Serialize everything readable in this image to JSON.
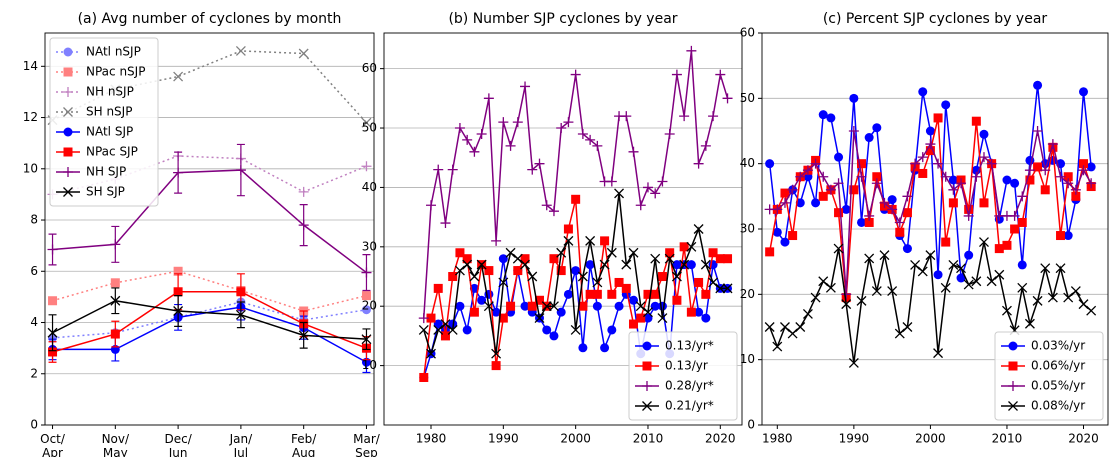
{
  "chart_data": [
    {
      "type": "line",
      "title": "(a) Avg number of cyclones by month",
      "categories": [
        "Oct/\nApr",
        "Nov/\nMay",
        "Dec/\nJun",
        "Jan/\nJul",
        "Feb/\nAug",
        "Mar/\nSep"
      ],
      "ylim": [
        0,
        15.3
      ],
      "yticks": [
        0,
        2,
        4,
        6,
        8,
        10,
        12,
        14
      ],
      "grid": true,
      "legend": "upper left",
      "series": [
        {
          "name": "NAtl nSJP",
          "color": "#8080ff",
          "linestyle": "dotted",
          "marker": "o",
          "values": [
            3.4,
            3.6,
            4.2,
            4.8,
            4.1,
            4.5
          ]
        },
        {
          "name": "NPac nSJP",
          "color": "#ff8080",
          "linestyle": "dotted",
          "marker": "s",
          "values": [
            4.85,
            5.55,
            6.0,
            5.25,
            4.45,
            5.05
          ]
        },
        {
          "name": "NH nSJP",
          "color": "#c080c0",
          "linestyle": "dotted",
          "marker": "+",
          "values": [
            9.0,
            9.6,
            10.5,
            10.4,
            9.1,
            10.1
          ]
        },
        {
          "name": "SH nSJP",
          "color": "#808080",
          "linestyle": "dotted",
          "marker": "x",
          "values": [
            11.9,
            13.1,
            13.6,
            14.6,
            14.5,
            11.8
          ]
        },
        {
          "name": "NAtl SJP",
          "color": "#0000ff",
          "linestyle": "solid",
          "marker": "o",
          "values": [
            2.95,
            2.95,
            4.2,
            4.6,
            3.8,
            2.45
          ],
          "errors": [
            0.4,
            0.45,
            0.5,
            0.5,
            0.45,
            0.4
          ]
        },
        {
          "name": "NPac SJP",
          "color": "#ff0000",
          "linestyle": "solid",
          "marker": "s",
          "values": [
            2.85,
            3.55,
            5.2,
            5.2,
            3.95,
            3.0
          ],
          "errors": [
            0.4,
            0.5,
            0.7,
            0.7,
            0.5,
            0.45
          ]
        },
        {
          "name": "NH SJP",
          "color": "#800080",
          "linestyle": "solid",
          "marker": "+",
          "values": [
            6.85,
            7.05,
            9.85,
            9.95,
            7.8,
            5.95
          ],
          "errors": [
            0.6,
            0.7,
            0.8,
            1.0,
            0.8,
            0.7
          ]
        },
        {
          "name": "SH SJP",
          "color": "#000000",
          "linestyle": "solid",
          "marker": "x",
          "values": [
            3.6,
            4.85,
            4.45,
            4.3,
            3.5,
            3.35
          ],
          "errors": [
            0.7,
            0.5,
            0.6,
            0.5,
            0.5,
            0.4
          ]
        }
      ]
    },
    {
      "type": "line",
      "title": "(b) Number SJP cyclones by year",
      "x": [
        1979,
        1980,
        1981,
        1982,
        1983,
        1984,
        1985,
        1986,
        1987,
        1988,
        1989,
        1990,
        1991,
        1992,
        1993,
        1994,
        1995,
        1996,
        1997,
        1998,
        1999,
        2000,
        2001,
        2002,
        2003,
        2004,
        2005,
        2006,
        2007,
        2008,
        2009,
        2010,
        2011,
        2012,
        2013,
        2014,
        2015,
        2016,
        2017,
        2018,
        2019,
        2020,
        2021
      ],
      "xlim": [
        1973.5,
        2023
      ],
      "xticks": [
        1980,
        1990,
        2000,
        2010,
        2020
      ],
      "ylim": [
        0,
        66
      ],
      "yticks": [
        10,
        20,
        30,
        40,
        50,
        60
      ],
      "grid": true,
      "legend": "lower right",
      "series": [
        {
          "name": "0.13/yr*",
          "color": "#0000ff",
          "linestyle": "solid",
          "marker": "o",
          "values": [
            8,
            12,
            17,
            16,
            17,
            20,
            16,
            23,
            21,
            22,
            19,
            28,
            19,
            26,
            20,
            19,
            18,
            16,
            15,
            19,
            22,
            26,
            13,
            27,
            20,
            13,
            16,
            20,
            22,
            21,
            12,
            18,
            20,
            20,
            12,
            27,
            27,
            27,
            19,
            18,
            27,
            23,
            23
          ]
        },
        {
          "name": "0.13/yr",
          "color": "#ff0000",
          "linestyle": "solid",
          "marker": "s",
          "values": [
            8,
            18,
            23,
            15,
            25,
            29,
            28,
            19,
            27,
            26,
            10,
            18,
            20,
            26,
            28,
            20,
            21,
            20,
            28,
            26,
            33,
            38,
            20,
            22,
            22,
            31,
            22,
            24,
            23,
            17,
            18,
            22,
            22,
            25,
            29,
            21,
            30,
            19,
            24,
            22,
            29,
            28,
            28
          ]
        },
        {
          "name": "0.28/yr*",
          "color": "#800080",
          "linestyle": "solid",
          "marker": "+",
          "values": [
            18,
            37,
            43,
            34,
            43,
            50,
            48,
            46,
            49,
            55,
            31,
            51,
            47,
            51,
            57,
            43,
            44,
            37,
            36,
            50,
            51,
            59,
            49,
            48,
            47,
            41,
            41,
            52,
            52,
            46,
            37,
            40,
            39,
            41,
            49,
            59,
            52,
            63,
            44,
            47,
            52,
            59,
            55
          ]
        },
        {
          "name": "0.21/yr*",
          "color": "#000000",
          "linestyle": "solid",
          "marker": "x",
          "values": [
            16,
            12,
            16,
            17,
            16,
            26,
            27,
            25,
            27,
            20,
            12,
            24,
            29,
            28,
            27,
            25,
            18,
            20,
            20,
            29,
            31,
            16,
            25,
            31,
            24,
            27,
            29,
            39,
            27,
            29,
            20,
            19,
            28,
            18,
            28,
            25,
            27,
            30,
            33,
            27,
            24,
            23,
            23
          ]
        }
      ]
    },
    {
      "type": "line",
      "title": "(c) Percent SJP cyclones by year",
      "x": [
        1979,
        1980,
        1981,
        1982,
        1983,
        1984,
        1985,
        1986,
        1987,
        1988,
        1989,
        1990,
        1991,
        1992,
        1993,
        1994,
        1995,
        1996,
        1997,
        1998,
        1999,
        2000,
        2001,
        2002,
        2003,
        2004,
        2005,
        2006,
        2007,
        2008,
        2009,
        2010,
        2011,
        2012,
        2013,
        2014,
        2015,
        2016,
        2017,
        2018,
        2019,
        2020,
        2021
      ],
      "xlim": [
        1978,
        2023.2
      ],
      "xticks": [
        1980,
        1990,
        2000,
        2010,
        2020
      ],
      "ylim": [
        0,
        60
      ],
      "yticks": [
        0,
        10,
        20,
        30,
        40,
        50,
        60
      ],
      "grid": true,
      "legend": "lower right",
      "series": [
        {
          "name": "0.03%/yr",
          "color": "#0000ff",
          "linestyle": "solid",
          "marker": "o",
          "values": [
            40,
            29.5,
            28,
            36,
            34,
            38,
            34,
            47.5,
            47,
            41,
            33,
            50,
            31,
            44,
            45.5,
            33,
            34.5,
            29,
            27,
            39,
            51,
            45,
            23,
            49,
            37.5,
            22.5,
            26,
            39,
            44.5,
            40,
            31.5,
            37.5,
            37,
            24.5,
            40.5,
            52,
            40,
            40.5,
            40,
            29,
            34.5,
            51,
            39.5
          ]
        },
        {
          "name": "0.06%/yr",
          "color": "#ff0000",
          "linestyle": "solid",
          "marker": "s",
          "values": [
            26.5,
            33,
            35.5,
            29,
            38,
            39,
            40.5,
            35,
            36,
            32.5,
            19.5,
            36,
            40,
            31,
            38,
            33.5,
            33,
            29.5,
            32.5,
            39.5,
            38.5,
            42,
            47,
            28,
            34,
            37.5,
            33,
            46.5,
            34,
            40,
            27,
            27.5,
            30,
            31,
            37.5,
            39.5,
            36,
            42.5,
            29,
            38,
            35,
            40,
            36.5
          ]
        },
        {
          "name": "0.05%/yr",
          "color": "#800080",
          "linestyle": "solid",
          "marker": "+",
          "values": [
            33,
            33,
            34,
            36,
            38,
            39,
            40,
            38,
            36,
            37,
            20,
            45,
            38,
            32,
            37,
            34,
            33,
            31,
            35,
            40,
            41,
            43,
            40,
            38,
            36,
            37,
            32,
            38,
            41,
            40,
            32,
            32,
            32,
            35,
            39,
            45,
            39,
            43,
            38,
            37,
            36,
            39,
            37
          ]
        },
        {
          "name": "0.08%/yr",
          "color": "#000000",
          "linestyle": "solid",
          "marker": "x",
          "values": [
            15,
            12,
            15,
            14,
            15,
            17,
            19.5,
            22,
            21,
            27,
            18.5,
            9.5,
            19,
            25.5,
            20.5,
            26,
            20.5,
            14,
            15,
            24.5,
            23.5,
            26,
            11,
            21,
            24.5,
            24,
            21.5,
            22,
            28,
            22,
            23,
            17.5,
            14.5,
            21,
            15.5,
            19,
            24,
            19.5,
            24,
            19.5,
            20.5,
            18.5,
            17.5
          ]
        }
      ]
    }
  ]
}
